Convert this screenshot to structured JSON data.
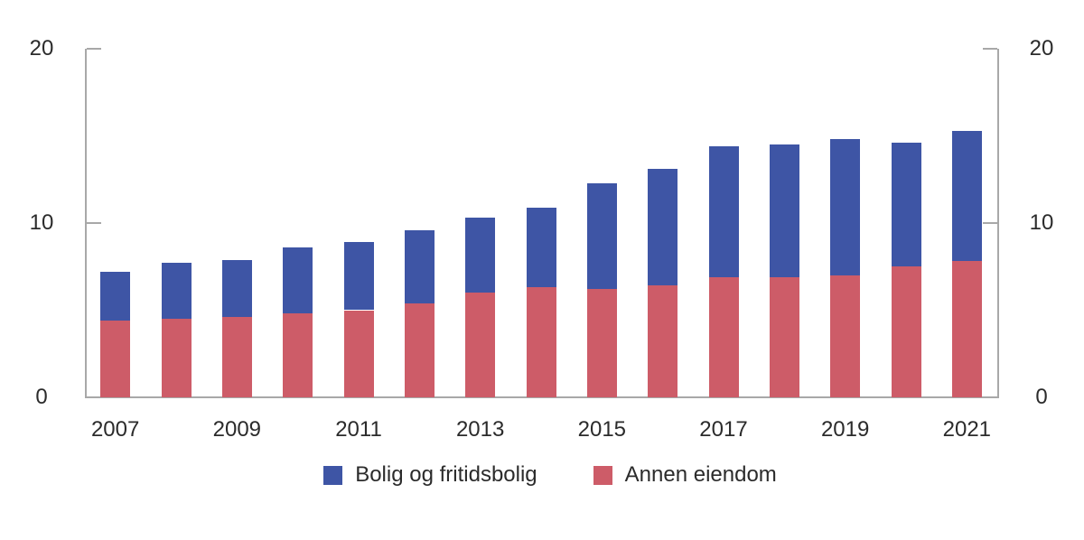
{
  "chart_data": {
    "type": "bar",
    "stacked": true,
    "categories": [
      "2007",
      "2008",
      "2009",
      "2010",
      "2011",
      "2012",
      "2013",
      "2014",
      "2015",
      "2016",
      "2017",
      "2018",
      "2019",
      "2020",
      "2021"
    ],
    "x_tick_labels": [
      "2007",
      "2009",
      "2011",
      "2013",
      "2015",
      "2017",
      "2019",
      "2021"
    ],
    "series": [
      {
        "name": "Bolig og fritidsbolig",
        "color": "#3e55a5",
        "values": [
          2.8,
          3.2,
          3.3,
          3.8,
          3.9,
          4.2,
          4.3,
          4.6,
          6.1,
          6.7,
          7.5,
          7.6,
          7.8,
          7.1,
          7.5
        ]
      },
      {
        "name": "Annen eiendom",
        "color": "#cd5c68",
        "values": [
          4.4,
          4.5,
          4.6,
          4.8,
          5.0,
          5.4,
          6.0,
          6.3,
          6.2,
          6.4,
          6.9,
          6.9,
          7.0,
          7.5,
          7.8
        ]
      }
    ],
    "stack_bottom_to_top": [
      1,
      0
    ],
    "totals": [
      7.2,
      7.7,
      7.9,
      8.6,
      8.9,
      9.6,
      10.3,
      10.9,
      12.3,
      13.1,
      14.4,
      14.5,
      14.8,
      14.6,
      15.3
    ],
    "ylim": [
      0,
      20
    ],
    "yticks": [
      0,
      10,
      20
    ],
    "y_axis_sides": [
      "left",
      "right"
    ],
    "grid": false,
    "legend_position": "bottom"
  },
  "colors": {
    "axis": "#a8a8a8",
    "text": "#2b2b2b",
    "background": "#ffffff"
  }
}
